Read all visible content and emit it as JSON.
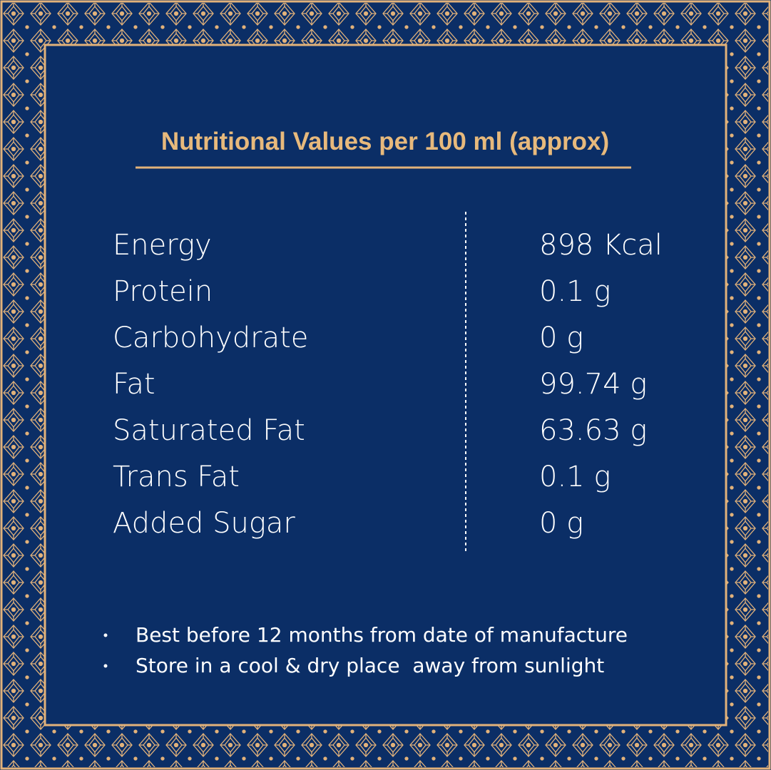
{
  "title": "Nutritional Values per 100 ml (approx)",
  "table": {
    "rows": [
      [
        "Energy",
        "898 Kcal"
      ],
      [
        "Protein",
        "0.1 g"
      ],
      [
        "Carbohydrate",
        "0 g"
      ],
      [
        "Fat",
        "99.74 g"
      ],
      [
        "Saturated Fat",
        "63.63 g"
      ],
      [
        "Trans Fat",
        "0.1 g"
      ],
      [
        "Added Sugar",
        "0 g"
      ]
    ]
  },
  "notes": [
    "Best before 12 months from date of manufacture",
    "Store in a cool & dry place  away from sunlight"
  ]
}
